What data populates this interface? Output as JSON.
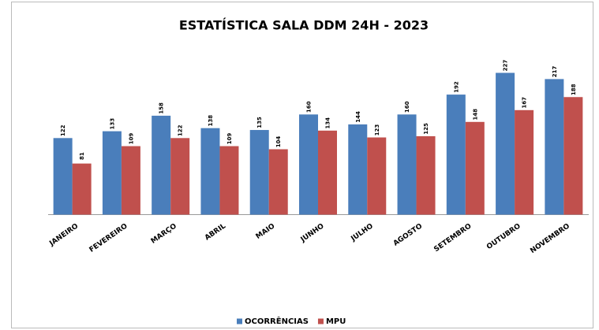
{
  "chart_data": {
    "type": "bar",
    "title": "ESTATÍSTICA SALA DDM 24H - 2023",
    "categories": [
      "JANEIRO",
      "FEVEREIRO",
      "MARÇO",
      "ABRIL",
      "MAIO",
      "JUNHO",
      "JULHO",
      "AGOSTO",
      "SETEMBRO",
      "OUTUBRO",
      "NOVEMBRO"
    ],
    "series": [
      {
        "name": "OCORRÊNCIAS",
        "color": "#4a7ebb",
        "values": [
          122,
          133,
          158,
          138,
          135,
          160,
          144,
          160,
          192,
          227,
          217
        ]
      },
      {
        "name": "MPU",
        "color": "#c0504d",
        "values": [
          81,
          109,
          122,
          109,
          104,
          134,
          123,
          125,
          148,
          167,
          188
        ]
      }
    ],
    "legend": "bottom"
  }
}
